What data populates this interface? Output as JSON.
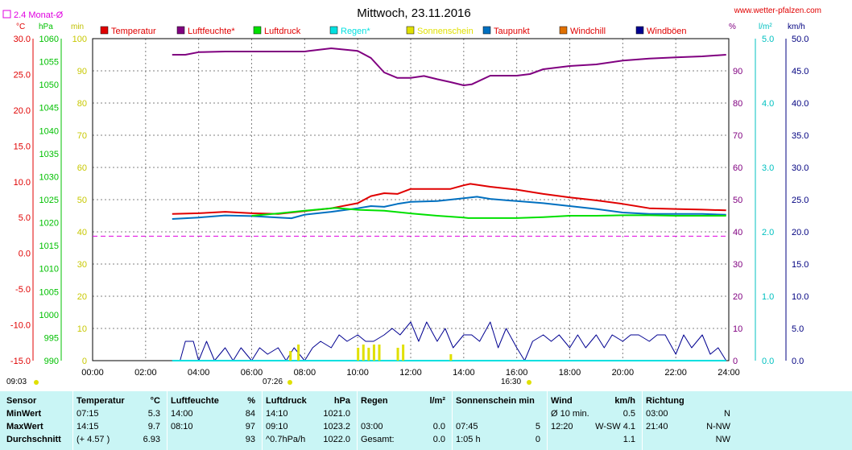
{
  "page": {
    "title": "Mittwoch, 23.11.2016",
    "site": "www.wetter-pfalzen.com",
    "monthly_avg_label": "2.4 Monat-Ø",
    "sunrise": "07:26",
    "sunset": "16:30",
    "start_time": "09:03"
  },
  "axes": {
    "left_units": [
      "°C",
      "hPa",
      "min"
    ],
    "right_units": [
      "%",
      "l/m²",
      "km/h"
    ],
    "temp_ticks": [
      "30.0",
      "25.0",
      "20.0",
      "15.0",
      "10.0",
      "5.0",
      "0.0",
      "-5.0",
      "-10.0",
      "-15.0"
    ],
    "hpa_ticks": [
      "1060",
      "1055",
      "1050",
      "1045",
      "1040",
      "1035",
      "1030",
      "1025",
      "1020",
      "1015",
      "1010",
      "1005",
      "1000",
      "995",
      "990"
    ],
    "min_ticks": [
      "100",
      "90",
      "80",
      "70",
      "60",
      "50",
      "40",
      "30",
      "20",
      "10",
      "0"
    ],
    "pct_ticks": [
      "90",
      "80",
      "70",
      "60",
      "50",
      "40",
      "30",
      "20",
      "10",
      "0"
    ],
    "rain_ticks": [
      "5.0",
      "4.0",
      "3.0",
      "2.0",
      "1.0",
      "0.0"
    ],
    "kmh_ticks": [
      "50.0",
      "45.0",
      "40.0",
      "35.0",
      "30.0",
      "25.0",
      "20.0",
      "15.0",
      "10.0",
      "5.0",
      "0.0"
    ],
    "time_ticks": [
      "00:00",
      "02:00",
      "04:00",
      "06:00",
      "08:00",
      "10:00",
      "12:00",
      "14:00",
      "16:00",
      "18:00",
      "20:00",
      "22:00",
      "24:00"
    ]
  },
  "legend": [
    {
      "label": "Temperatur",
      "color": "#e00000"
    },
    {
      "label": "Luftfeuchte*",
      "color": "#800080"
    },
    {
      "label": "Luftdruck",
      "color": "#00e000"
    },
    {
      "label": "Regen*",
      "color": "#00e0e0"
    },
    {
      "label": "Sonnenschein",
      "color": "#e0e000"
    },
    {
      "label": "Taupunkt",
      "color": "#0070c0"
    },
    {
      "label": "Windchill",
      "color": "#e07000"
    },
    {
      "label": "Windböen",
      "color": "#000090"
    }
  ],
  "chart_data": {
    "type": "line",
    "title": "Mittwoch, 23.11.2016",
    "x_unit": "hours",
    "xlim": [
      0,
      24
    ],
    "temp_axis_ylim": [
      -15,
      30
    ],
    "pct_axis_ylim": [
      0,
      100
    ],
    "monthly_avg_temperature": 2.4,
    "series": [
      {
        "name": "Temperatur",
        "unit": "°C",
        "color": "#e00000",
        "points": [
          [
            3,
            5.5
          ],
          [
            4,
            5.6
          ],
          [
            5,
            5.8
          ],
          [
            6,
            5.6
          ],
          [
            7,
            5.5
          ],
          [
            8,
            5.9
          ],
          [
            9,
            6.3
          ],
          [
            10,
            7.0
          ],
          [
            10.5,
            8.0
          ],
          [
            11,
            8.4
          ],
          [
            11.5,
            8.3
          ],
          [
            12,
            9.0
          ],
          [
            13,
            9.0
          ],
          [
            13.5,
            9.0
          ],
          [
            14,
            9.5
          ],
          [
            14.25,
            9.7
          ],
          [
            15,
            9.3
          ],
          [
            16,
            8.9
          ],
          [
            17,
            8.3
          ],
          [
            18,
            7.8
          ],
          [
            19,
            7.4
          ],
          [
            20,
            6.9
          ],
          [
            21,
            6.3
          ],
          [
            22,
            6.2
          ],
          [
            23,
            6.1
          ],
          [
            23.9,
            6.0
          ]
        ]
      },
      {
        "name": "Taupunkt",
        "unit": "°C",
        "color": "#0070c0",
        "points": [
          [
            3,
            4.8
          ],
          [
            4,
            5.0
          ],
          [
            5,
            5.3
          ],
          [
            6,
            5.2
          ],
          [
            7,
            5.0
          ],
          [
            7.5,
            4.9
          ],
          [
            8,
            5.4
          ],
          [
            9,
            5.8
          ],
          [
            10,
            6.3
          ],
          [
            10.5,
            6.6
          ],
          [
            11,
            6.5
          ],
          [
            11.5,
            6.9
          ],
          [
            12,
            7.2
          ],
          [
            13,
            7.3
          ],
          [
            13.5,
            7.5
          ],
          [
            14,
            7.7
          ],
          [
            14.5,
            7.9
          ],
          [
            15,
            7.6
          ],
          [
            16,
            7.3
          ],
          [
            17,
            7.0
          ],
          [
            18,
            6.6
          ],
          [
            19,
            6.2
          ],
          [
            20,
            5.7
          ],
          [
            21,
            5.5
          ],
          [
            22,
            5.5
          ],
          [
            23,
            5.5
          ],
          [
            23.9,
            5.4
          ]
        ]
      },
      {
        "name": "Luftdruck",
        "unit": "hPa",
        "color": "#00e000",
        "points": [
          [
            6,
            1021.5
          ],
          [
            7,
            1022.0
          ],
          [
            8,
            1022.6
          ],
          [
            9.17,
            1023.2
          ],
          [
            10,
            1022.8
          ],
          [
            11,
            1022.6
          ],
          [
            12,
            1022.0
          ],
          [
            13,
            1021.5
          ],
          [
            13.5,
            1021.3
          ],
          [
            14,
            1021.1
          ],
          [
            14.17,
            1021.0
          ],
          [
            15,
            1021.0
          ],
          [
            16,
            1021.0
          ],
          [
            17,
            1021.2
          ],
          [
            18,
            1021.5
          ],
          [
            19,
            1021.5
          ],
          [
            20,
            1021.6
          ],
          [
            21,
            1021.6
          ],
          [
            22,
            1021.5
          ],
          [
            23,
            1021.5
          ],
          [
            23.9,
            1021.5
          ]
        ]
      },
      {
        "name": "Luftfeuchte*",
        "unit": "%",
        "color": "#800080",
        "points": [
          [
            3,
            95
          ],
          [
            3.5,
            95
          ],
          [
            4,
            95.8
          ],
          [
            5,
            96
          ],
          [
            6,
            96
          ],
          [
            7,
            96
          ],
          [
            8,
            96
          ],
          [
            8.17,
            96.2
          ],
          [
            9,
            97
          ],
          [
            10,
            96.2
          ],
          [
            10.5,
            94
          ],
          [
            11,
            89.5
          ],
          [
            11.5,
            87.8
          ],
          [
            12,
            87.8
          ],
          [
            12.5,
            88.4
          ],
          [
            13,
            87.4
          ],
          [
            13.5,
            86.5
          ],
          [
            14,
            85.5
          ],
          [
            14.3,
            85.8
          ],
          [
            15,
            88.5
          ],
          [
            16,
            88.5
          ],
          [
            16.5,
            89
          ],
          [
            17,
            90.5
          ],
          [
            18,
            91.5
          ],
          [
            19,
            92
          ],
          [
            20,
            93.2
          ],
          [
            21,
            93.8
          ],
          [
            22,
            94.2
          ],
          [
            23,
            94.5
          ],
          [
            23.9,
            95
          ]
        ]
      },
      {
        "name": "Windböen",
        "unit": "km/h",
        "color": "#000090",
        "points": [
          [
            3,
            0
          ],
          [
            3.3,
            0
          ],
          [
            3.5,
            3
          ],
          [
            3.8,
            3
          ],
          [
            4,
            0
          ],
          [
            4.3,
            3
          ],
          [
            4.6,
            0
          ],
          [
            5,
            2
          ],
          [
            5.3,
            0
          ],
          [
            5.6,
            2
          ],
          [
            6,
            0
          ],
          [
            6.3,
            2
          ],
          [
            6.6,
            1
          ],
          [
            7,
            2
          ],
          [
            7.3,
            0
          ],
          [
            7.6,
            2
          ],
          [
            8,
            0
          ],
          [
            8.3,
            2
          ],
          [
            8.6,
            3
          ],
          [
            9,
            2
          ],
          [
            9.3,
            4
          ],
          [
            9.6,
            3
          ],
          [
            10,
            4
          ],
          [
            10.3,
            3
          ],
          [
            10.6,
            3
          ],
          [
            11,
            4
          ],
          [
            11.3,
            5
          ],
          [
            11.6,
            4
          ],
          [
            12,
            6
          ],
          [
            12.3,
            3
          ],
          [
            12.6,
            6
          ],
          [
            13,
            3
          ],
          [
            13.3,
            5
          ],
          [
            13.6,
            2
          ],
          [
            14,
            4
          ],
          [
            14.3,
            4
          ],
          [
            14.6,
            3
          ],
          [
            15,
            6
          ],
          [
            15.3,
            2
          ],
          [
            15.6,
            5
          ],
          [
            16,
            2
          ],
          [
            16.3,
            0
          ],
          [
            16.6,
            3
          ],
          [
            17,
            4
          ],
          [
            17.3,
            3
          ],
          [
            17.6,
            4
          ],
          [
            18,
            2
          ],
          [
            18.3,
            4
          ],
          [
            18.6,
            2
          ],
          [
            19,
            4
          ],
          [
            19.3,
            2
          ],
          [
            19.6,
            4
          ],
          [
            20,
            3
          ],
          [
            20.3,
            4
          ],
          [
            20.6,
            4
          ],
          [
            21,
            3
          ],
          [
            21.3,
            4
          ],
          [
            21.6,
            4
          ],
          [
            22,
            1
          ],
          [
            22.3,
            4
          ],
          [
            22.6,
            2
          ],
          [
            23,
            4
          ],
          [
            23.3,
            1
          ],
          [
            23.6,
            2
          ],
          [
            23.9,
            0
          ]
        ]
      },
      {
        "name": "Regen*",
        "unit": "l/m²",
        "color": "#00e0e0",
        "points": [
          [
            3,
            0
          ],
          [
            23.9,
            0
          ]
        ]
      },
      {
        "name": "Sonnenschein",
        "unit": "min",
        "color": "#e0e000",
        "bars": [
          [
            7.45,
            3
          ],
          [
            7.75,
            5
          ],
          [
            10,
            4
          ],
          [
            10.2,
            5
          ],
          [
            10.4,
            4
          ],
          [
            10.6,
            5
          ],
          [
            10.8,
            5
          ],
          [
            11.5,
            4
          ],
          [
            11.7,
            5
          ],
          [
            13.5,
            2
          ]
        ]
      }
    ]
  },
  "stats": {
    "cols": [
      {
        "hdr": [
          "Sensor",
          ""
        ],
        "rows": [
          [
            "MinWert",
            ""
          ],
          [
            "MaxWert",
            ""
          ],
          [
            "Durchschnitt",
            ""
          ]
        ]
      },
      {
        "hdr": [
          "Temperatur",
          "°C"
        ],
        "rows": [
          [
            "07:15",
            "5.3"
          ],
          [
            "14:15",
            "9.7"
          ],
          [
            "(+ 4.57 )",
            "6.93"
          ]
        ]
      },
      {
        "hdr": [
          "Luftfeuchte",
          "%"
        ],
        "rows": [
          [
            "14:00",
            "84"
          ],
          [
            "08:10",
            "97"
          ],
          [
            "",
            "93"
          ]
        ]
      },
      {
        "hdr": [
          "Luftdruck",
          "hPa"
        ],
        "rows": [
          [
            "14:10",
            "1021.0"
          ],
          [
            "09:10",
            "1023.2"
          ],
          [
            "^0.7hPa/h",
            "1022.0"
          ]
        ]
      },
      {
        "hdr": [
          "Regen",
          "l/m²"
        ],
        "rows": [
          [
            "",
            ""
          ],
          [
            "03:00",
            "0.0"
          ],
          [
            "Gesamt:",
            "0.0"
          ]
        ]
      },
      {
        "hdr": [
          "Sonnenschein min",
          ""
        ],
        "rows": [
          [
            "",
            ""
          ],
          [
            "07:45",
            "5"
          ],
          [
            "1:05 h",
            "0"
          ]
        ]
      },
      {
        "hdr": [
          "Wind",
          "km/h"
        ],
        "rows": [
          [
            "Ø 10 min.",
            "0.5"
          ],
          [
            "12:20",
            "W-SW 4.1"
          ],
          [
            "",
            "1.1"
          ]
        ]
      },
      {
        "hdr": [
          "Richtung",
          ""
        ],
        "rows": [
          [
            "03:00",
            "N"
          ],
          [
            "21:40",
            "N-NW"
          ],
          [
            "",
            "NW"
          ]
        ]
      }
    ]
  }
}
